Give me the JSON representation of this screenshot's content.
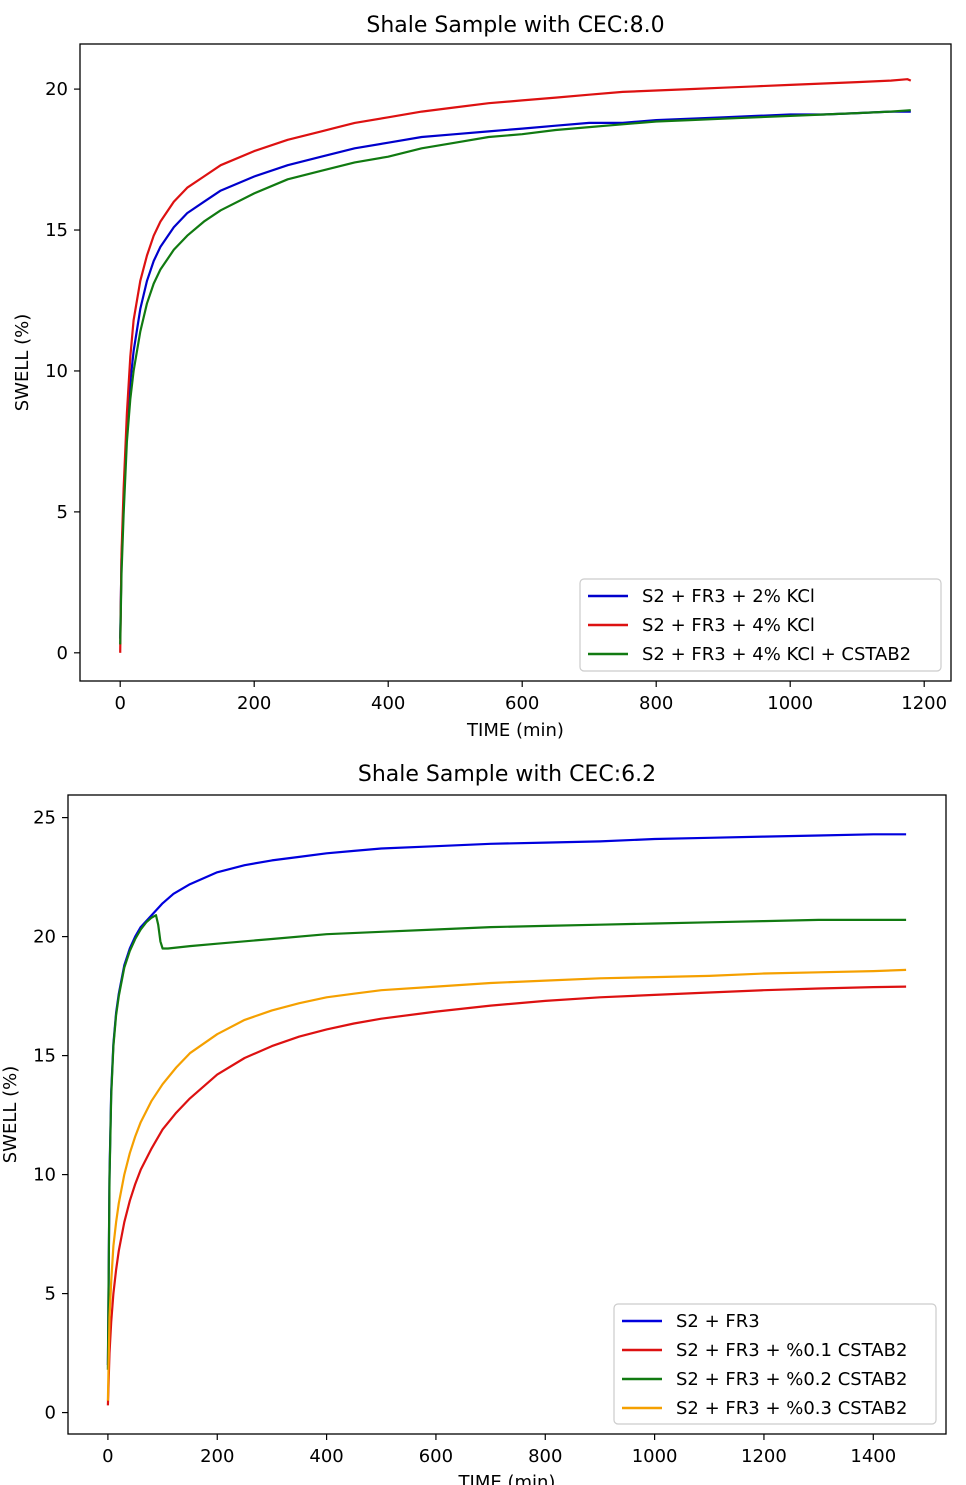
{
  "chart_data": [
    {
      "type": "line",
      "title": "Shale Sample with CEC:8.0",
      "xlabel": "TIME (min)",
      "ylabel": "SWELL (%)",
      "xlim": [
        -60,
        1240
      ],
      "ylim": [
        -1.0,
        21.6
      ],
      "xticks": [
        0,
        200,
        400,
        600,
        800,
        1000,
        1200
      ],
      "yticks": [
        0,
        5,
        10,
        15,
        20
      ],
      "grid": false,
      "legend_position": "lower-right",
      "series": [
        {
          "name": "S2 + FR3 + 2% KCl",
          "color": "#0000cc",
          "x": [
            0,
            2,
            5,
            10,
            15,
            20,
            30,
            40,
            50,
            60,
            80,
            100,
            125,
            150,
            200,
            250,
            300,
            350,
            400,
            450,
            500,
            550,
            600,
            650,
            700,
            750,
            800,
            850,
            900,
            950,
            1000,
            1050,
            1100,
            1150,
            1180
          ],
          "y": [
            0.5,
            3.3,
            5.3,
            8.0,
            9.6,
            10.7,
            12.2,
            13.2,
            13.9,
            14.4,
            15.1,
            15.6,
            16.0,
            16.4,
            16.9,
            17.3,
            17.6,
            17.9,
            18.1,
            18.3,
            18.4,
            18.5,
            18.6,
            18.7,
            18.8,
            18.8,
            18.9,
            18.95,
            19.0,
            19.05,
            19.1,
            19.1,
            19.15,
            19.2,
            19.2
          ]
        },
        {
          "name": "S2 + FR3 + 4% KCl",
          "color": "#dd1111",
          "x": [
            0,
            2,
            5,
            10,
            15,
            20,
            30,
            40,
            50,
            60,
            80,
            100,
            125,
            150,
            200,
            250,
            300,
            350,
            400,
            450,
            500,
            550,
            600,
            650,
            700,
            750,
            800,
            850,
            900,
            950,
            1000,
            1050,
            1100,
            1150,
            1175,
            1180
          ],
          "y": [
            0.0,
            3.5,
            5.8,
            8.5,
            10.5,
            11.8,
            13.2,
            14.1,
            14.8,
            15.3,
            16.0,
            16.5,
            16.9,
            17.3,
            17.8,
            18.2,
            18.5,
            18.8,
            19.0,
            19.2,
            19.35,
            19.5,
            19.6,
            19.7,
            19.8,
            19.9,
            19.95,
            20.0,
            20.05,
            20.1,
            20.15,
            20.2,
            20.25,
            20.3,
            20.35,
            20.3
          ]
        },
        {
          "name": "S2 + FR3 + 4% KCl + CSTAB2",
          "color": "#117a11",
          "x": [
            0,
            2,
            5,
            10,
            15,
            20,
            30,
            40,
            50,
            60,
            80,
            100,
            125,
            150,
            200,
            250,
            300,
            350,
            400,
            450,
            500,
            550,
            600,
            650,
            700,
            750,
            800,
            850,
            900,
            950,
            1000,
            1050,
            1100,
            1150,
            1180
          ],
          "y": [
            0.3,
            2.8,
            4.9,
            7.5,
            9.0,
            10.0,
            11.4,
            12.4,
            13.1,
            13.6,
            14.3,
            14.8,
            15.3,
            15.7,
            16.3,
            16.8,
            17.1,
            17.4,
            17.6,
            17.9,
            18.1,
            18.3,
            18.4,
            18.55,
            18.65,
            18.75,
            18.85,
            18.9,
            18.95,
            19.0,
            19.05,
            19.1,
            19.15,
            19.2,
            19.25
          ]
        }
      ]
    },
    {
      "type": "line",
      "title": "Shale Sample with CEC:6.2",
      "xlabel": "TIME (min)",
      "ylabel": "SWELL (%)",
      "xlim": [
        -73,
        1533
      ],
      "ylim": [
        -0.9,
        25.95
      ],
      "xticks": [
        0,
        200,
        400,
        600,
        800,
        1000,
        1200,
        1400
      ],
      "yticks": [
        0,
        5,
        10,
        15,
        20,
        25
      ],
      "grid": false,
      "legend_position": "lower-right",
      "series": [
        {
          "name": "S2 + FR3",
          "color": "#0000dd",
          "x": [
            0,
            3,
            6,
            10,
            15,
            20,
            30,
            40,
            50,
            60,
            80,
            100,
            120,
            150,
            200,
            250,
            300,
            350,
            400,
            450,
            500,
            600,
            700,
            800,
            900,
            1000,
            1100,
            1200,
            1300,
            1400,
            1460
          ],
          "y": [
            2.0,
            10.0,
            13.5,
            15.5,
            16.8,
            17.6,
            18.8,
            19.5,
            20.0,
            20.4,
            20.9,
            21.4,
            21.8,
            22.2,
            22.7,
            23.0,
            23.2,
            23.35,
            23.5,
            23.6,
            23.7,
            23.8,
            23.9,
            23.95,
            24.0,
            24.1,
            24.15,
            24.2,
            24.25,
            24.3,
            24.3
          ]
        },
        {
          "name": "S2 + FR3 + %0.1 CSTAB2",
          "color": "#dd1111",
          "x": [
            0,
            3,
            6,
            10,
            15,
            20,
            30,
            40,
            50,
            60,
            80,
            100,
            125,
            150,
            200,
            250,
            300,
            350,
            400,
            450,
            500,
            600,
            700,
            800,
            900,
            1000,
            1100,
            1200,
            1300,
            1400,
            1460
          ],
          "y": [
            0.3,
            2.5,
            3.8,
            5.0,
            6.0,
            6.8,
            8.0,
            8.9,
            9.6,
            10.2,
            11.1,
            11.9,
            12.6,
            13.2,
            14.2,
            14.9,
            15.4,
            15.8,
            16.1,
            16.35,
            16.55,
            16.85,
            17.1,
            17.3,
            17.45,
            17.55,
            17.65,
            17.75,
            17.82,
            17.88,
            17.9
          ]
        },
        {
          "name": "S2 + FR3 + %0.2 CSTAB2",
          "color": "#117a11",
          "x": [
            0,
            3,
            6,
            10,
            15,
            20,
            30,
            40,
            50,
            60,
            70,
            80,
            88,
            92,
            96,
            100,
            110,
            150,
            200,
            300,
            400,
            500,
            600,
            700,
            800,
            900,
            1000,
            1100,
            1200,
            1300,
            1400,
            1460
          ],
          "y": [
            1.8,
            9.8,
            13.3,
            15.4,
            16.7,
            17.5,
            18.7,
            19.4,
            19.9,
            20.3,
            20.6,
            20.8,
            20.9,
            20.5,
            19.8,
            19.5,
            19.5,
            19.6,
            19.7,
            19.9,
            20.1,
            20.2,
            20.3,
            20.4,
            20.45,
            20.5,
            20.55,
            20.6,
            20.65,
            20.7,
            20.7,
            20.7
          ]
        },
        {
          "name": "S2 + FR3 + %0.3 CSTAB2",
          "color": "#f5a000",
          "x": [
            0,
            3,
            6,
            10,
            15,
            20,
            30,
            40,
            50,
            60,
            80,
            100,
            125,
            150,
            200,
            250,
            300,
            350,
            400,
            450,
            500,
            600,
            700,
            800,
            900,
            1000,
            1100,
            1200,
            1300,
            1400,
            1460
          ],
          "y": [
            0.5,
            4.0,
            5.5,
            7.0,
            8.0,
            8.8,
            10.0,
            10.9,
            11.6,
            12.2,
            13.1,
            13.8,
            14.5,
            15.1,
            15.9,
            16.5,
            16.9,
            17.2,
            17.45,
            17.6,
            17.75,
            17.9,
            18.05,
            18.15,
            18.25,
            18.3,
            18.35,
            18.45,
            18.5,
            18.55,
            18.6
          ]
        }
      ]
    }
  ]
}
